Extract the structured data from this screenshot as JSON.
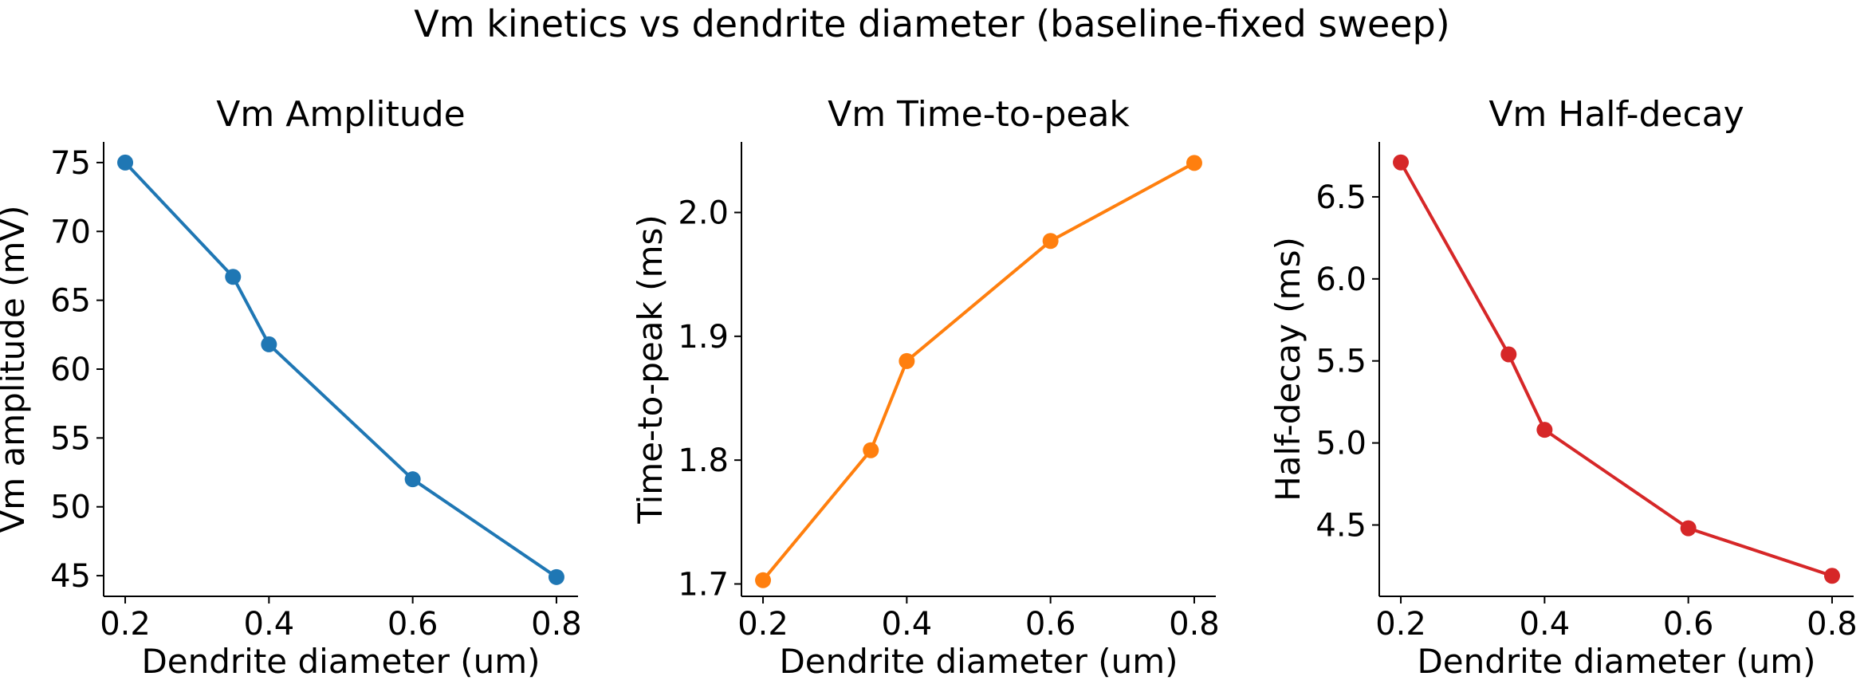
{
  "suptitle": "Vm kinetics vs dendrite diameter (baseline-fixed sweep)",
  "chart_data": [
    {
      "type": "line",
      "title": "Vm Amplitude",
      "xlabel": "Dendrite diameter (um)",
      "ylabel": "Vm amplitude (mV)",
      "x": [
        0.2,
        0.35,
        0.4,
        0.6,
        0.8
      ],
      "series": [
        {
          "values": [
            75.0,
            66.7,
            61.8,
            52.0,
            44.9
          ],
          "color": "#1f77b4"
        }
      ],
      "xticks": [
        "0.2",
        "0.4",
        "0.6",
        "0.8"
      ],
      "yticks": [
        "45",
        "50",
        "55",
        "60",
        "65",
        "70",
        "75"
      ],
      "xlim": [
        0.17,
        0.83
      ],
      "ylim": [
        43.5,
        76.5
      ],
      "grid": false
    },
    {
      "type": "line",
      "title": "Vm Time-to-peak",
      "xlabel": "Dendrite diameter (um)",
      "ylabel": "Time-to-peak (ms)",
      "x": [
        0.2,
        0.35,
        0.4,
        0.6,
        0.8
      ],
      "series": [
        {
          "values": [
            1.703,
            1.808,
            1.88,
            1.977,
            2.04
          ],
          "color": "#ff7f0e"
        }
      ],
      "xticks": [
        "0.2",
        "0.4",
        "0.6",
        "0.8"
      ],
      "yticks": [
        "1.7",
        "1.8",
        "1.9",
        "2.0"
      ],
      "xlim": [
        0.17,
        0.83
      ],
      "ylim": [
        1.69,
        2.057
      ],
      "grid": false
    },
    {
      "type": "line",
      "title": "Vm Half-decay",
      "xlabel": "Dendrite diameter (um)",
      "ylabel": "Half-decay (ms)",
      "x": [
        0.2,
        0.35,
        0.4,
        0.6,
        0.8
      ],
      "series": [
        {
          "values": [
            6.71,
            5.54,
            5.08,
            4.48,
            4.19
          ],
          "color": "#d62728"
        }
      ],
      "xticks": [
        "0.2",
        "0.4",
        "0.6",
        "0.8"
      ],
      "yticks": [
        "4.5",
        "5.0",
        "5.5",
        "6.0",
        "6.5"
      ],
      "xlim": [
        0.17,
        0.83
      ],
      "ylim": [
        4.065,
        6.835
      ],
      "grid": false
    }
  ]
}
